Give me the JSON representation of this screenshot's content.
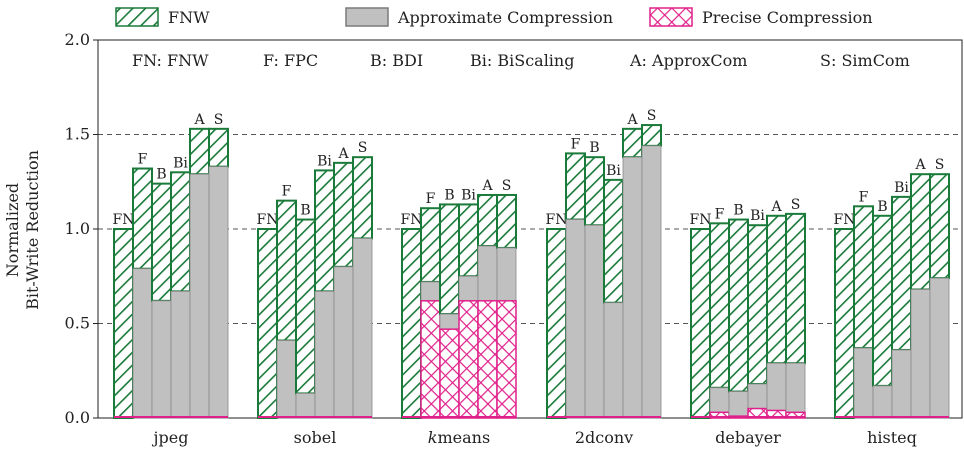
{
  "chart_data": {
    "type": "bar",
    "stacked": true,
    "title": "",
    "xlabel": "",
    "ylabel": [
      "Normalized",
      "Bit-Write Reduction"
    ],
    "ylim": [
      0,
      2.0
    ],
    "yticks": [
      "0.0",
      "0.5",
      "1.0",
      "1.5",
      "2.0"
    ],
    "grid": "horizontal dashed at 0.5, 1.0, 1.5",
    "legend_position": "top",
    "legend": [
      {
        "name": "FNW",
        "pattern": "diagonal-hatch",
        "color": "#1a7a3a"
      },
      {
        "name": "Approximate Compression",
        "pattern": "solid",
        "color": "#c0c0c0"
      },
      {
        "name": "Precise Compression",
        "pattern": "cross-hatch",
        "color": "#e0208a"
      }
    ],
    "abbreviations": [
      "FN: FNW",
      "F: FPC",
      "B: BDI",
      "Bi: BiScaling",
      "A: ApproxCom",
      "S: SimCom"
    ],
    "bar_labels": [
      "FN",
      "F",
      "B",
      "Bi",
      "A",
      "S"
    ],
    "groups": [
      {
        "name": "jpeg",
        "bars": [
          {
            "precise": 0.0,
            "approx": 0.0,
            "total": 1.0
          },
          {
            "precise": 0.0,
            "approx": 0.79,
            "total": 1.32
          },
          {
            "precise": 0.0,
            "approx": 0.62,
            "total": 1.24
          },
          {
            "precise": 0.0,
            "approx": 0.67,
            "total": 1.3
          },
          {
            "precise": 0.0,
            "approx": 1.29,
            "total": 1.53
          },
          {
            "precise": 0.0,
            "approx": 1.33,
            "total": 1.53
          }
        ]
      },
      {
        "name": "sobel",
        "bars": [
          {
            "precise": 0.0,
            "approx": 0.0,
            "total": 1.0
          },
          {
            "precise": 0.0,
            "approx": 0.41,
            "total": 1.15
          },
          {
            "precise": 0.0,
            "approx": 0.13,
            "total": 1.05
          },
          {
            "precise": 0.0,
            "approx": 0.67,
            "total": 1.31
          },
          {
            "precise": 0.0,
            "approx": 0.8,
            "total": 1.35
          },
          {
            "precise": 0.0,
            "approx": 0.95,
            "total": 1.38
          }
        ]
      },
      {
        "name": "kmeans",
        "name_italic_prefix": "k",
        "name_rest": "means",
        "bars": [
          {
            "precise": 0.0,
            "approx": 0.0,
            "total": 1.0
          },
          {
            "precise": 0.62,
            "approx": 0.72,
            "total": 1.11
          },
          {
            "precise": 0.47,
            "approx": 0.55,
            "total": 1.13
          },
          {
            "precise": 0.62,
            "approx": 0.75,
            "total": 1.13
          },
          {
            "precise": 0.62,
            "approx": 0.91,
            "total": 1.18
          },
          {
            "precise": 0.62,
            "approx": 0.9,
            "total": 1.18
          }
        ]
      },
      {
        "name": "2dconv",
        "bars": [
          {
            "precise": 0.0,
            "approx": 0.0,
            "total": 1.0
          },
          {
            "precise": 0.0,
            "approx": 1.05,
            "total": 1.4
          },
          {
            "precise": 0.0,
            "approx": 1.02,
            "total": 1.38
          },
          {
            "precise": 0.0,
            "approx": 0.61,
            "total": 1.26
          },
          {
            "precise": 0.0,
            "approx": 1.38,
            "total": 1.53
          },
          {
            "precise": 0.0,
            "approx": 1.44,
            "total": 1.55
          }
        ]
      },
      {
        "name": "debayer",
        "bars": [
          {
            "precise": 0.0,
            "approx": 0.0,
            "total": 1.0
          },
          {
            "precise": 0.03,
            "approx": 0.16,
            "total": 1.03
          },
          {
            "precise": 0.01,
            "approx": 0.14,
            "total": 1.05
          },
          {
            "precise": 0.05,
            "approx": 0.18,
            "total": 1.02
          },
          {
            "precise": 0.04,
            "approx": 0.29,
            "total": 1.07
          },
          {
            "precise": 0.03,
            "approx": 0.29,
            "total": 1.08
          }
        ]
      },
      {
        "name": "histeq",
        "bars": [
          {
            "precise": 0.0,
            "approx": 0.0,
            "total": 1.0
          },
          {
            "precise": 0.0,
            "approx": 0.37,
            "total": 1.12
          },
          {
            "precise": 0.0,
            "approx": 0.17,
            "total": 1.07
          },
          {
            "precise": 0.0,
            "approx": 0.36,
            "total": 1.17
          },
          {
            "precise": 0.0,
            "approx": 0.68,
            "total": 1.29
          },
          {
            "precise": 0.0,
            "approx": 0.74,
            "total": 1.29
          }
        ]
      }
    ]
  }
}
